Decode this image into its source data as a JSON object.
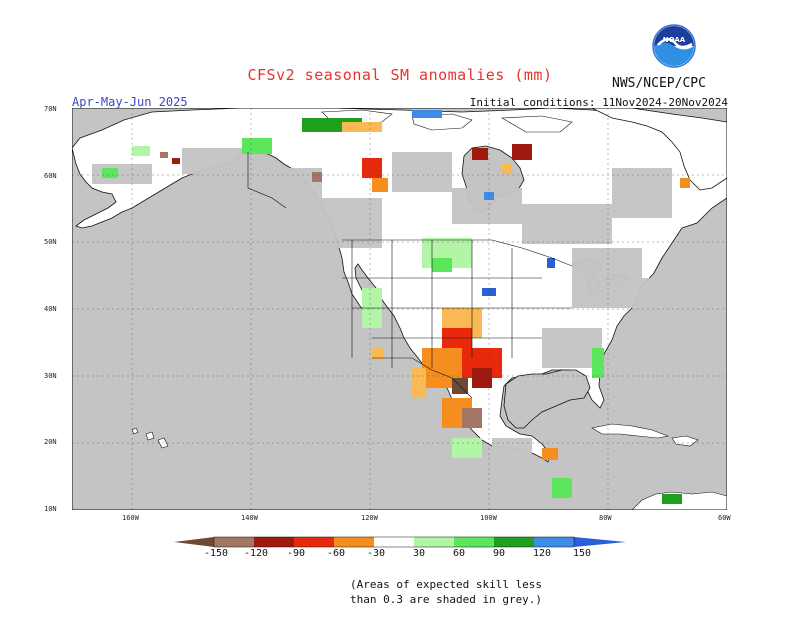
{
  "title": "CFSv2 seasonal SM anomalies (mm)",
  "agency": "NWS/NCEP/CPC",
  "logo_text": "NOAA",
  "season": "Apr-May-Jun 2025",
  "initial_conditions": "Initial conditions: 11Nov2024-20Nov2024",
  "lat_labels": [
    "70N",
    "60N",
    "50N",
    "40N",
    "30N",
    "20N",
    "10N"
  ],
  "lon_labels": [
    "160W",
    "140W",
    "120W",
    "100W",
    "80W",
    "60W"
  ],
  "colorbar": {
    "labels": [
      "-150",
      "-120",
      "-90",
      "-60",
      "-30",
      "30",
      "60",
      "90",
      "120",
      "150"
    ],
    "colors": [
      "#6e4a35",
      "#a27766",
      "#9e1a10",
      "#e8290c",
      "#f58d1f",
      "#f9b954",
      "#ffffff",
      "#b3f5a7",
      "#5ce65c",
      "#1ea01e",
      "#3c8ce8",
      "#2b5fd6"
    ]
  },
  "note_line1": "(Areas of expected skill less",
  "note_line2": "than 0.3 are shaded in grey.)",
  "colors": {
    "ocean": "#c4c4c4",
    "title": "#e8332b",
    "season": "#3b46c8"
  }
}
